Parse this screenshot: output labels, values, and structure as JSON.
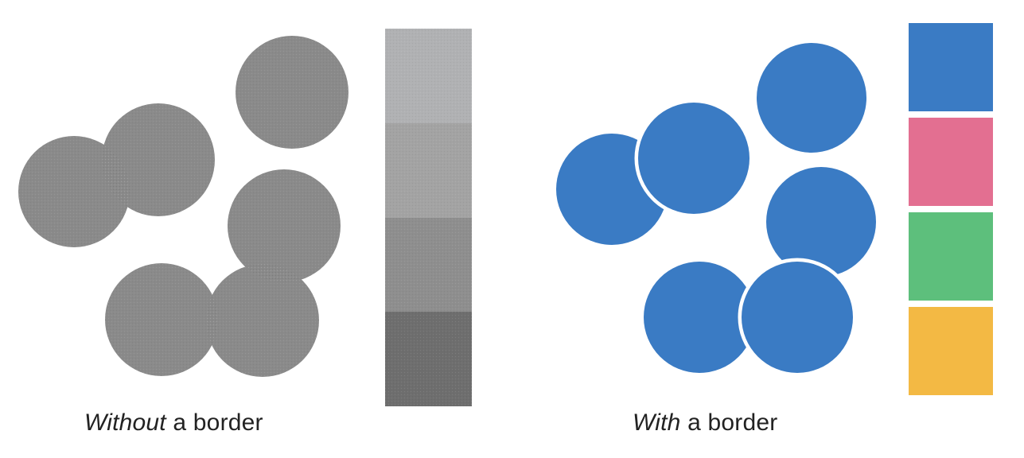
{
  "panels": {
    "left": {
      "caption_emphasis": "Without",
      "caption_rest": " a border",
      "circle_color": "#8a8a8a",
      "swatches": [
        "#b0b1b3",
        "#a3a3a3",
        "#8e8e8e",
        "#6e6e6e"
      ]
    },
    "right": {
      "caption_emphasis": "With",
      "caption_rest": " a border",
      "circle_color": "#3a7bc4",
      "border_color": "#ffffff",
      "swatches": [
        "#3a7bc4",
        "#e36f91",
        "#5dbf7c",
        "#f3b944"
      ]
    }
  }
}
